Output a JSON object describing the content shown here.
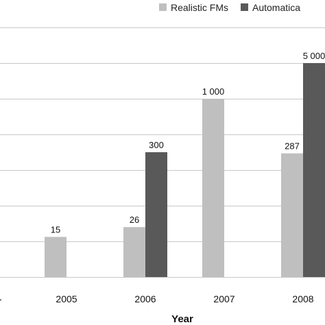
{
  "chart_data": {
    "type": "bar",
    "categories": [
      "2005",
      "2006",
      "2007",
      "2008"
    ],
    "xlabel": "Year",
    "ylabel": "",
    "title": "",
    "grid": true,
    "legend_placement": "top-right",
    "series": [
      {
        "name": "Realistic FMs",
        "color": "#bfbfbf",
        "values": [
          15,
          26,
          1000,
          287
        ],
        "labels": [
          "15",
          "26",
          "1 000",
          "287"
        ]
      },
      {
        "name": "Automatica",
        "color": "#595959",
        "values": [
          null,
          300,
          null,
          5000
        ],
        "labels": [
          "",
          "300",
          "",
          "5 000"
        ]
      }
    ],
    "axis_tick_fragment": "-"
  }
}
